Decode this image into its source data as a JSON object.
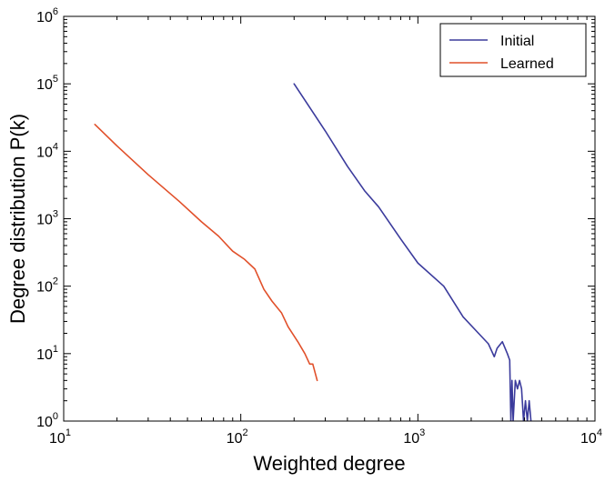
{
  "chart_data": {
    "type": "line",
    "xlabel": "Weighted degree",
    "ylabel": "Degree distribution P(k)",
    "xlim": [
      10,
      10000
    ],
    "ylim": [
      1,
      1000000
    ],
    "xscale": "log",
    "yscale": "log",
    "x_ticks": [
      {
        "base": "10",
        "exp": "1"
      },
      {
        "base": "10",
        "exp": "2"
      },
      {
        "base": "10",
        "exp": "3"
      },
      {
        "base": "10",
        "exp": "4"
      }
    ],
    "y_ticks": [
      {
        "base": "10",
        "exp": "0"
      },
      {
        "base": "10",
        "exp": "1"
      },
      {
        "base": "10",
        "exp": "2"
      },
      {
        "base": "10",
        "exp": "3"
      },
      {
        "base": "10",
        "exp": "4"
      },
      {
        "base": "10",
        "exp": "5"
      },
      {
        "base": "10",
        "exp": "6"
      }
    ],
    "grid": false,
    "legend_position": "top-right",
    "series": [
      {
        "name": "Initial",
        "color": "#3b3b9c",
        "x": [
          200,
          300,
          400,
          500,
          600,
          800,
          1000,
          1400,
          1800,
          2200,
          2500,
          2700,
          2800,
          3000,
          3200,
          3300,
          3350,
          3400,
          3450,
          3550,
          3650,
          3750,
          3850,
          3950,
          4050,
          4150,
          4250,
          4350
        ],
        "y": [
          100000,
          20000,
          6000,
          2600,
          1500,
          500,
          220,
          100,
          35,
          20,
          14,
          9,
          12,
          15,
          10,
          8,
          1,
          4,
          1,
          4,
          3,
          4,
          3,
          1,
          2,
          1,
          2,
          1
        ]
      },
      {
        "name": "Learned",
        "color": "#e1502a",
        "x": [
          15,
          20,
          30,
          45,
          60,
          75,
          90,
          105,
          120,
          135,
          150,
          170,
          185,
          210,
          230,
          245,
          255,
          270
        ],
        "y": [
          25000,
          12000,
          4500,
          1800,
          900,
          550,
          330,
          250,
          180,
          90,
          60,
          40,
          25,
          15,
          10,
          7,
          7,
          4
        ]
      }
    ]
  }
}
